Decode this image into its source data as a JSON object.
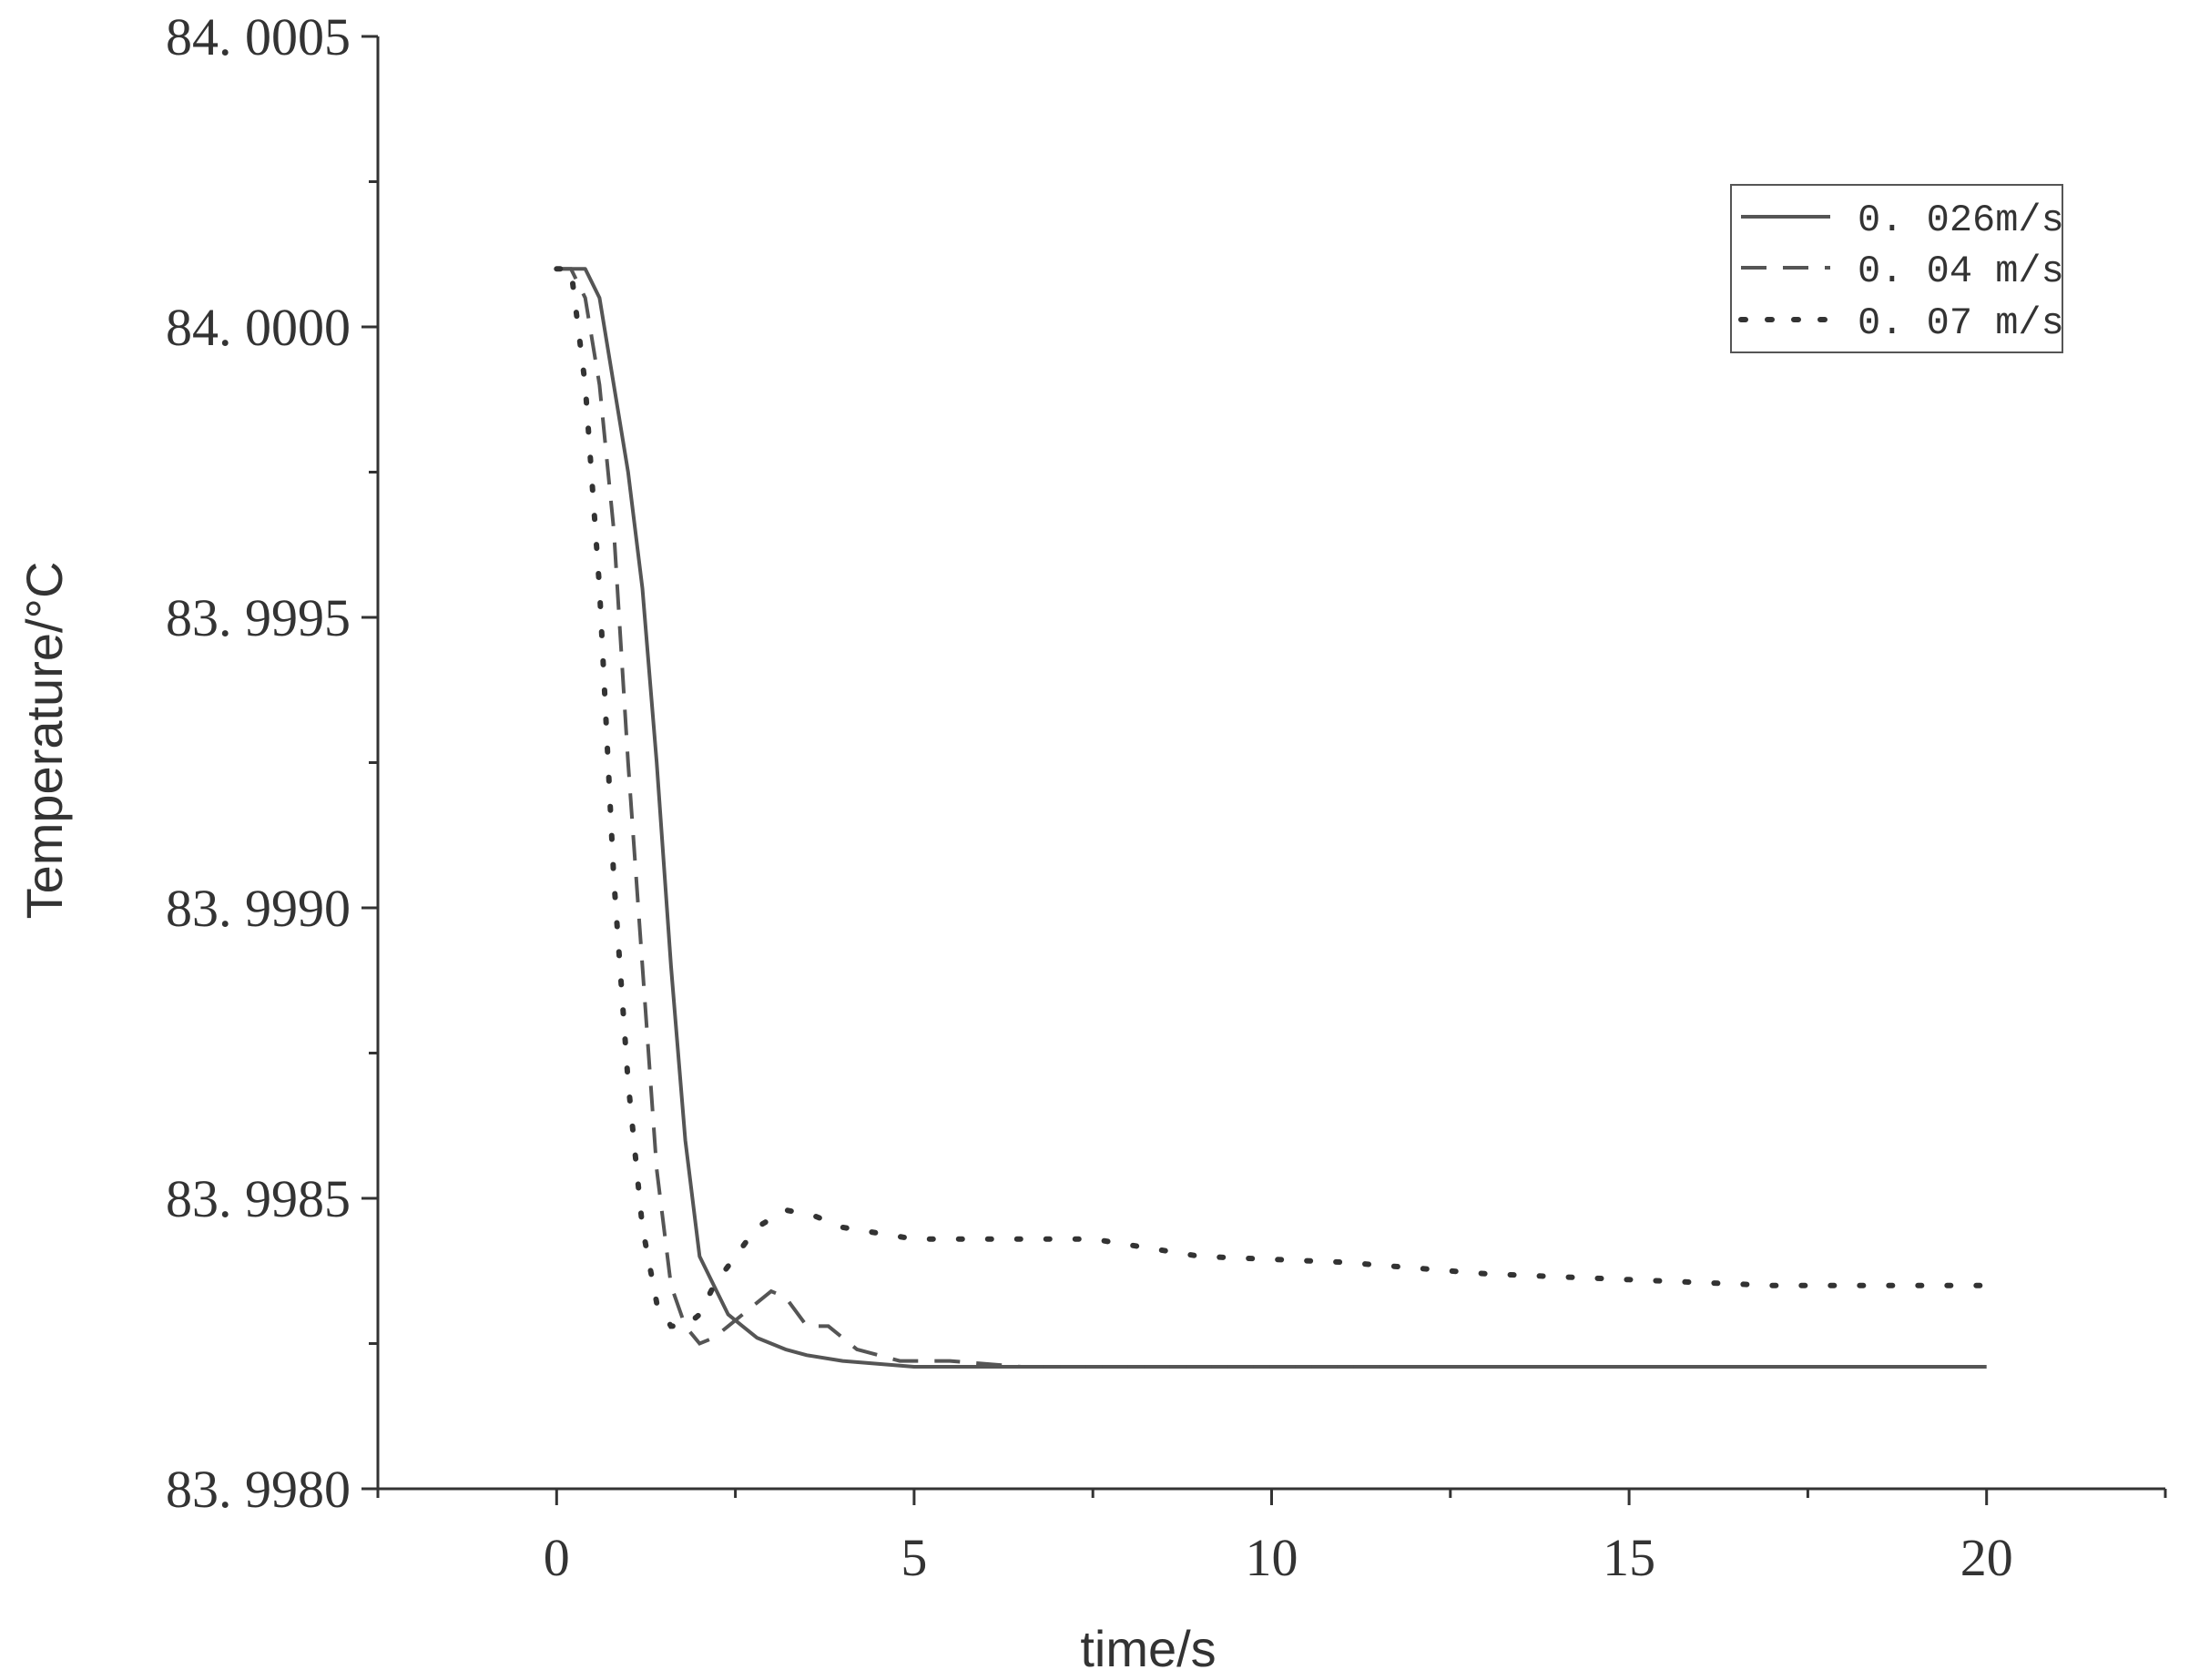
{
  "chart_data": {
    "type": "line",
    "xlabel": "time/s",
    "ylabel": "Temperature/°C",
    "xlim": [
      -2.5,
      22.5
    ],
    "ylim": [
      83.998,
      84.0005
    ],
    "x_ticks": [
      0,
      5,
      10,
      15,
      20
    ],
    "x_tick_labels": [
      "0",
      "5",
      "10",
      "15",
      "20"
    ],
    "y_ticks": [
      83.998,
      83.9985,
      83.999,
      83.9995,
      84.0,
      84.0005
    ],
    "y_tick_labels": [
      "83. 9980",
      "83. 9985",
      "83. 9990",
      "83. 9995",
      "84. 0000",
      "84. 0005"
    ],
    "grid": false,
    "legend_position": "top-right",
    "series": [
      {
        "name": "0. 026m/s",
        "style": "solid",
        "x": [
          0.0,
          0.2,
          0.4,
          0.6,
          0.8,
          1.0,
          1.2,
          1.4,
          1.6,
          1.8,
          2.0,
          2.2,
          2.4,
          2.6,
          2.8,
          3.0,
          3.2,
          3.5,
          4.0,
          5.0,
          6.0,
          8.0,
          10.0,
          12.0,
          15.0,
          17.0,
          20.0
        ],
        "y": [
          84.0001,
          84.0001,
          84.0001,
          84.00005,
          83.9999,
          83.99975,
          83.99955,
          83.99925,
          83.9989,
          83.9986,
          83.9984,
          83.99835,
          83.9983,
          83.99828,
          83.99826,
          83.99825,
          83.99824,
          83.99823,
          83.99822,
          83.99821,
          83.99821,
          83.99821,
          83.99821,
          83.99821,
          83.99821,
          83.99821,
          83.99821
        ]
      },
      {
        "name": "0. 04 m/s",
        "style": "dashed",
        "x": [
          0.0,
          0.2,
          0.4,
          0.6,
          0.8,
          1.0,
          1.2,
          1.4,
          1.6,
          1.8,
          2.0,
          2.2,
          2.4,
          2.6,
          2.8,
          3.0,
          3.2,
          3.5,
          3.8,
          4.2,
          4.8,
          5.5,
          6.5,
          8.0,
          10.0,
          11.7
        ],
        "y": [
          84.0001,
          84.0001,
          84.00005,
          83.9999,
          83.99965,
          83.99925,
          83.9989,
          83.99855,
          83.99835,
          83.99828,
          83.99825,
          83.99826,
          83.99828,
          83.9983,
          83.99832,
          83.99834,
          83.99833,
          83.99828,
          83.99828,
          83.99824,
          83.99822,
          83.99822,
          83.99821,
          83.99821,
          83.99821,
          83.99821
        ]
      },
      {
        "name": "0. 07 m/s",
        "style": "dotted",
        "x": [
          0.0,
          0.2,
          0.4,
          0.6,
          0.8,
          1.0,
          1.2,
          1.4,
          1.6,
          1.8,
          2.0,
          2.2,
          2.5,
          2.8,
          3.2,
          3.6,
          4.0,
          5.0,
          6.0,
          7.5,
          9.0,
          11.0,
          13.0,
          15.0,
          17.0,
          20.0
        ],
        "y": [
          84.0001,
          84.0001,
          83.9999,
          83.99955,
          83.99905,
          83.9987,
          83.99845,
          83.99832,
          83.99828,
          83.99828,
          83.9983,
          83.99835,
          83.9984,
          83.99845,
          83.99848,
          83.99847,
          83.99845,
          83.99843,
          83.99843,
          83.99843,
          83.9984,
          83.99839,
          83.99837,
          83.99836,
          83.99835,
          83.99835
        ]
      }
    ]
  }
}
